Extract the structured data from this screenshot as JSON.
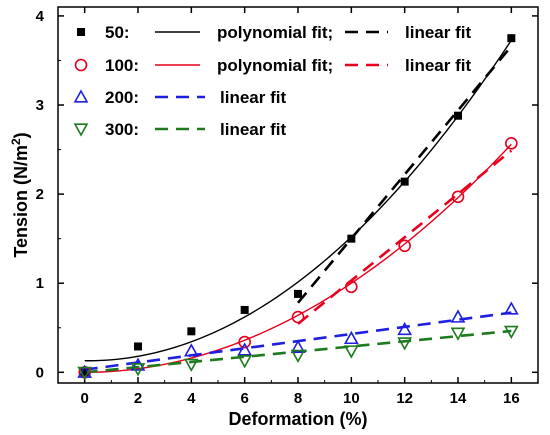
{
  "chart_data": {
    "type": "scatter",
    "xlabel": "Deformation (%)",
    "ylabel_main": "Tension (N/m",
    "ylabel_sup": "2",
    "ylabel_tail": ")",
    "xlim": [
      -1,
      17
    ],
    "ylim": [
      -0.12,
      4.1
    ],
    "xticks": [
      0,
      2,
      4,
      6,
      8,
      10,
      12,
      14,
      16
    ],
    "yticks": [
      0,
      1,
      2,
      3,
      4
    ],
    "grid": false,
    "legend_position": "top-left",
    "series": [
      {
        "name": "50:",
        "marker": "square",
        "color": "#000000",
        "x": [
          0,
          2,
          4,
          6,
          8,
          10,
          12,
          14,
          16
        ],
        "y": [
          0.0,
          0.29,
          0.46,
          0.7,
          0.88,
          1.5,
          2.14,
          2.88,
          3.75
        ],
        "polynomial_fit": {
          "label": "polynomial fit;",
          "x_range": [
            0,
            16
          ],
          "coefficients": [
            0.13,
            -0.004,
            0.0143
          ]
        },
        "linear_fit": {
          "label": "linear fit",
          "x_range": [
            8,
            16
          ],
          "slope": 0.36,
          "intercept": -2.1
        }
      },
      {
        "name": "100:",
        "marker": "circle",
        "color": "#e8001c",
        "x": [
          0,
          6,
          8,
          10,
          12,
          14,
          16
        ],
        "y": [
          0.0,
          0.34,
          0.62,
          0.96,
          1.42,
          1.97,
          2.57
        ],
        "polynomial_fit": {
          "label": "polynomial fit;",
          "x_range": [
            0,
            16
          ],
          "coefficients": [
            0.0,
            0.0,
            0.01
          ]
        },
        "linear_fit": {
          "label": "linear fit",
          "x_range": [
            8,
            16
          ],
          "slope": 0.243,
          "intercept": -1.4
        }
      },
      {
        "name": "200:",
        "marker": "triangle-up",
        "color": "#1f1fe0",
        "x": [
          0,
          2,
          4,
          6,
          8,
          10,
          12,
          14,
          16
        ],
        "y": [
          0.0,
          0.08,
          0.24,
          0.25,
          0.28,
          0.38,
          0.48,
          0.62,
          0.71
        ],
        "linear_fit": {
          "label": "linear fit",
          "x_range": [
            0,
            16
          ],
          "slope": 0.04,
          "intercept": 0.03
        }
      },
      {
        "name": "300:",
        "marker": "triangle-down",
        "color": "#1d7a1d",
        "x": [
          0,
          2,
          4,
          6,
          8,
          10,
          12,
          14,
          16
        ],
        "y": [
          0.0,
          0.04,
          0.09,
          0.13,
          0.19,
          0.24,
          0.33,
          0.44,
          0.46
        ],
        "linear_fit": {
          "label": "linear fit",
          "x_range": [
            0,
            16
          ],
          "slope": 0.029,
          "intercept": 0.0
        }
      }
    ]
  }
}
